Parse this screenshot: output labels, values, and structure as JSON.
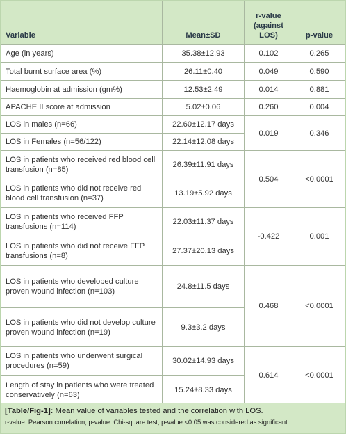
{
  "table": {
    "header": [
      "Variable",
      "Mean±SD",
      "r-value (against LOS)",
      "p-value"
    ],
    "groups": [
      {
        "rows": [
          {
            "variable": "Age (in years)",
            "mean": "35.38±12.93"
          }
        ],
        "r": "0.102",
        "p": "0.265"
      },
      {
        "rows": [
          {
            "variable": "Total burnt surface area (%)",
            "mean": "26.11±0.40"
          }
        ],
        "r": "0.049",
        "p": "0.590"
      },
      {
        "rows": [
          {
            "variable": "Haemoglobin at admission (gm%)",
            "mean": "12.53±2.49"
          }
        ],
        "r": "0.014",
        "p": "0.881"
      },
      {
        "rows": [
          {
            "variable": "APACHE II score at admission",
            "mean": "5.02±0.06"
          }
        ],
        "r": "0.260",
        "p": "0.004"
      },
      {
        "rows": [
          {
            "variable": "LOS in males (n=66)",
            "mean": "22.60±12.17 days"
          },
          {
            "variable": "LOS in Females (n=56/122)",
            "mean": "22.14±12.08 days"
          }
        ],
        "r": "0.019",
        "p": "0.346"
      },
      {
        "rows": [
          {
            "variable": "LOS in patients who received red blood cell transfusion (n=85)",
            "mean": "26.39±11.91 days"
          },
          {
            "variable": "LOS in patients who did not receive red blood cell transfusion (n=37)",
            "mean": "13.19±5.92 days"
          }
        ],
        "r": "0.504",
        "p": "<0.0001"
      },
      {
        "rows": [
          {
            "variable": "LOS in patients who received FFP transfusions (n=114)",
            "mean": "22.03±11.37 days"
          },
          {
            "variable": "LOS in patients who did not receive FFP transfusions (n=8)",
            "mean": "27.37±20.13 days"
          }
        ],
        "r": "-0.422",
        "p": "0.001"
      },
      {
        "rows": [
          {
            "variable": "LOS in patients who developed culture proven wound infection (n=103)",
            "mean": "24.8±11.5 days"
          },
          {
            "variable": "LOS in patients who did not develop culture proven wound infection (n=19)",
            "mean": "9.3±3.2 days"
          }
        ],
        "r": "0.468",
        "p": "<0.0001"
      },
      {
        "rows": [
          {
            "variable": "LOS in patients who underwent surgical procedures (n=59)",
            "mean": "30.02±14.93 days"
          },
          {
            "variable": "Length of stay in patients who were treated conservatively (n=63)",
            "mean": "15.24±8.33 days"
          }
        ],
        "r": "0.614",
        "p": "<0.0001"
      }
    ]
  },
  "caption": {
    "label": "[Table/Fig-1]:",
    "text": "Mean value of variables tested and the correlation with LOS.",
    "note": "r-value: Pearson correlation; p-value: Chi-square test; p-value <0.05 was considered as significant"
  }
}
